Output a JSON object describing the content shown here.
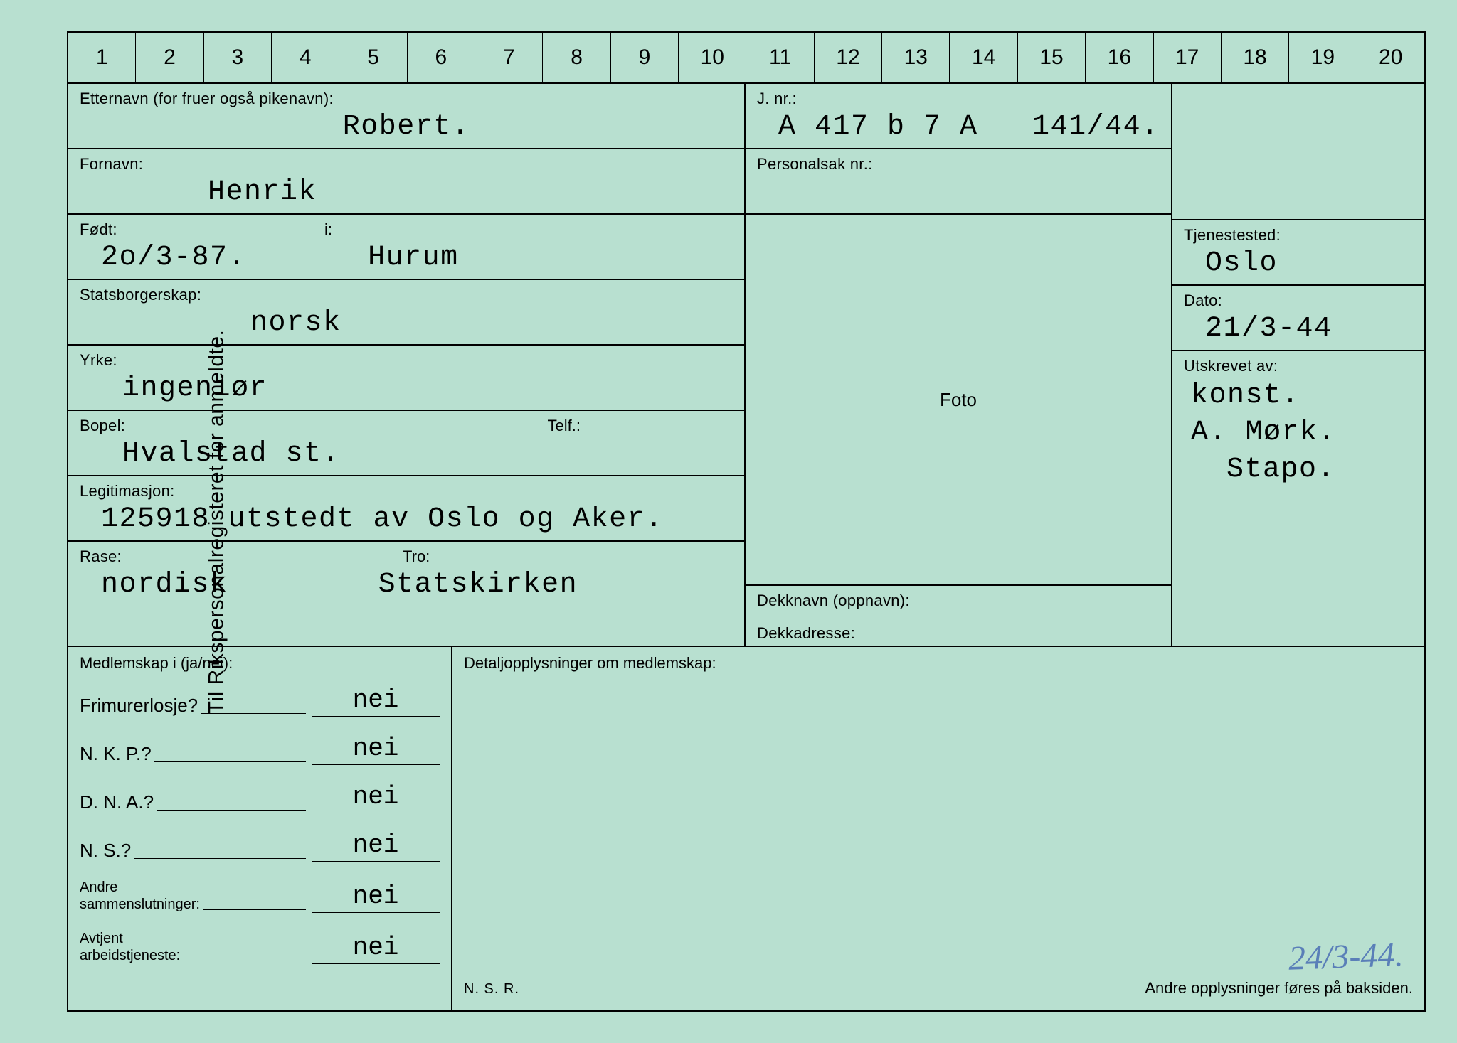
{
  "colors": {
    "card_bg": "#b8e0d0",
    "page_bg": "#1a1a1a",
    "line": "#000000",
    "handwritten": "#5a7fb8"
  },
  "typography": {
    "label_font": "Arial",
    "label_size_pt": 16,
    "value_font": "Courier",
    "value_size_pt": 30
  },
  "vertical_title": "Til Rikspersonalregisteret for anmeldte.",
  "ruler": [
    "1",
    "2",
    "3",
    "4",
    "5",
    "6",
    "7",
    "8",
    "9",
    "10",
    "11",
    "12",
    "13",
    "14",
    "15",
    "16",
    "17",
    "18",
    "19",
    "20"
  ],
  "fields": {
    "etternavn_label": "Etternavn (for fruer også pikenavn):",
    "etternavn_value": "Robert.",
    "fornavn_label": "Fornavn:",
    "fornavn_value": "Henrik",
    "fodt_label": "Født:",
    "fodt_value": "2o/3-87.",
    "fodt_i_label": "i:",
    "fodt_i_value": "Hurum",
    "statsborgerskap_label": "Statsborgerskap:",
    "statsborgerskap_value": "norsk",
    "yrke_label": "Yrke:",
    "yrke_value": "ingeniør",
    "bopel_label": "Bopel:",
    "bopel_value": "Hvalstad st.",
    "telf_label": "Telf.:",
    "telf_value": "",
    "legitimasjon_label": "Legitimasjon:",
    "legitimasjon_value": "125918 utstedt av Oslo og Aker.",
    "rase_label": "Rase:",
    "rase_value": "nordisk",
    "tro_label": "Tro:",
    "tro_value": "Statskirken",
    "jnr_label": "J. nr.:",
    "jnr_value": "A 417 b 7 A   141/44.",
    "personalsak_label": "Personalsak nr.:",
    "personalsak_value": "",
    "foto_label": "Foto",
    "dekknavn_label": "Dekknavn (oppnavn):",
    "dekknavn_value": "",
    "dekkadresse_label": "Dekkadresse:",
    "dekkadresse_value": "",
    "tjenestested_label": "Tjenestested:",
    "tjenestested_value": "Oslo",
    "dato_label": "Dato:",
    "dato_value": "21/3-44",
    "utskrevet_label": "Utskrevet av:",
    "utskrevet_value1": "konst.",
    "utskrevet_value2": "A. Mørk.",
    "utskrevet_value3": "Stapo."
  },
  "membership": {
    "header": "Medlemskap i (ja/nei):",
    "rows": [
      {
        "q": "Frimurerlosje?",
        "a": "nei"
      },
      {
        "q": "N. K. P.?",
        "a": "nei"
      },
      {
        "q": "D. N. A.?",
        "a": "nei"
      },
      {
        "q": "N. S.?",
        "a": "nei"
      },
      {
        "q": "Andre\nsammenslutninger:",
        "a": "nei",
        "small": true
      },
      {
        "q": "Avtjent\narbeidstjeneste:",
        "a": "nei",
        "small": true
      }
    ]
  },
  "detail": {
    "header": "Detaljopplysninger om medlemskap:",
    "footer_left": "N. S. R.",
    "footer_right": "Andre opplysninger føres på baksiden."
  },
  "handwritten_bottom": "24/3-44."
}
